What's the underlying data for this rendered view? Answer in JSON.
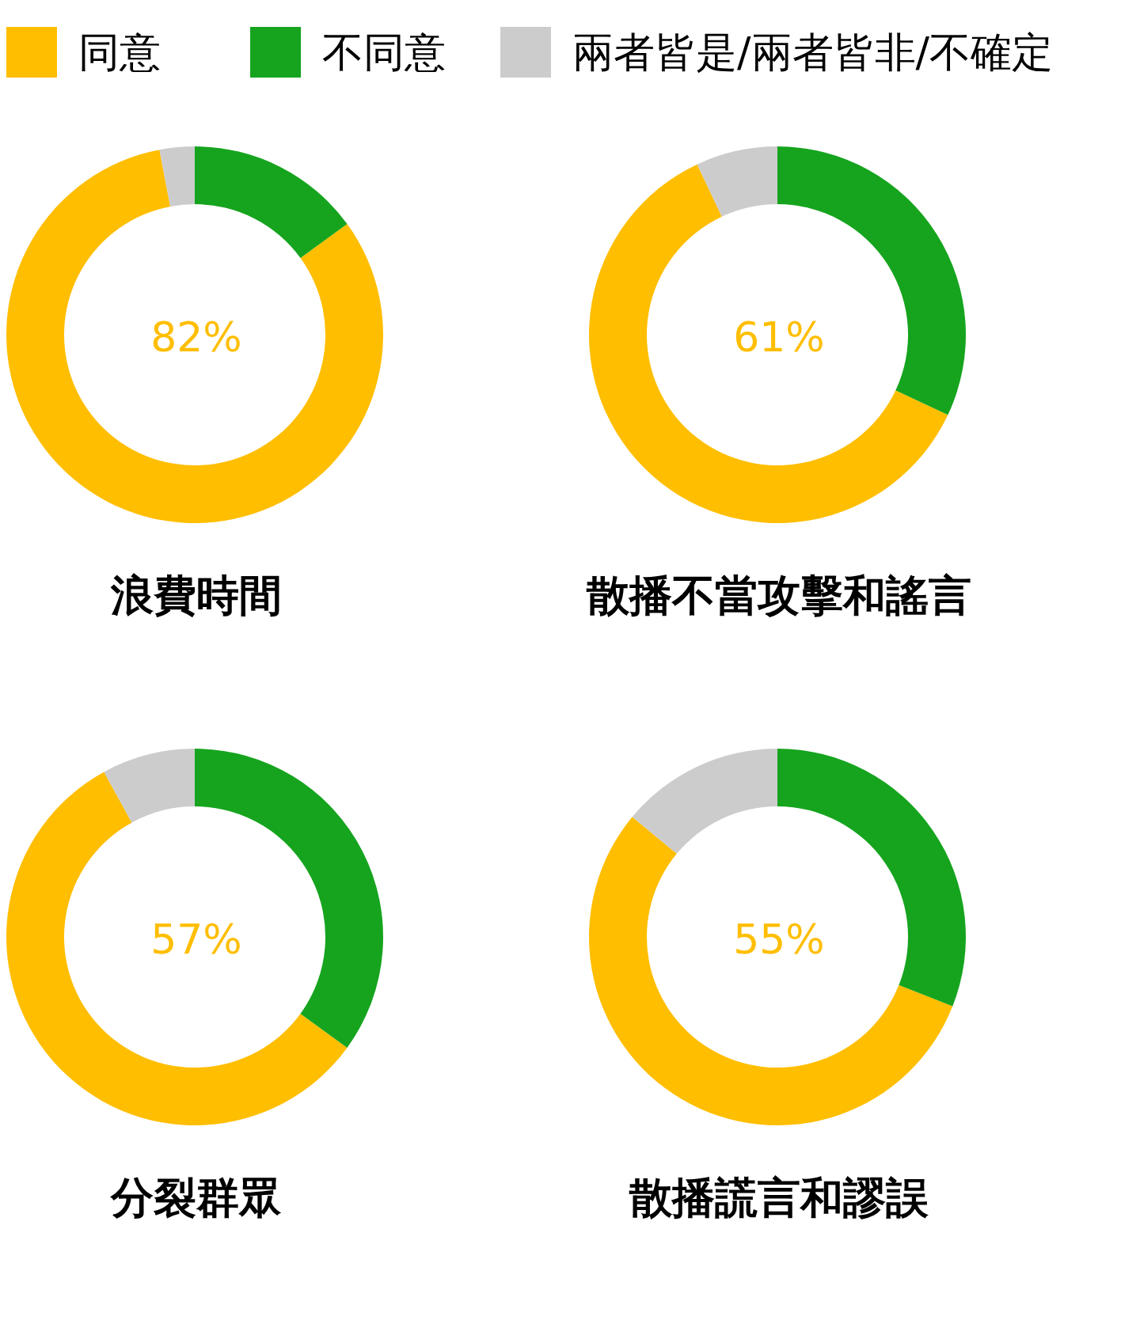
{
  "chart_data": [
    {
      "type": "donut",
      "title": "浪費時間",
      "categories": [
        "同意",
        "不同意",
        "兩者皆是/兩者皆非/不確定"
      ],
      "values": [
        82,
        15,
        3
      ],
      "colors": [
        "#ffbe00",
        "#16a41e",
        "#cccccc"
      ],
      "value_labels": [
        "82%",
        null,
        null
      ],
      "legend": "top"
    },
    {
      "type": "donut",
      "title": "散播不當攻擊和謠言",
      "categories": [
        null,
        null,
        null
      ],
      "values": [
        61,
        32,
        7
      ],
      "colors": [
        "#ffbe00",
        "#16a41e",
        "#cccccc"
      ],
      "value_labels": [
        "61%",
        null,
        null
      ]
    },
    {
      "type": "donut",
      "title": "分裂群眾",
      "categories": [
        null,
        null,
        null
      ],
      "values": [
        57,
        35,
        8
      ],
      "colors": [
        "#ffbe00",
        "#16a41e",
        "#cccccc"
      ],
      "value_labels": [
        "57%",
        null,
        null
      ]
    },
    {
      "type": "donut",
      "title": "散播謊言和謬誤",
      "categories": [
        null,
        null,
        null
      ],
      "values": [
        55,
        31,
        14
      ],
      "colors": [
        "#ffbe00",
        "#16a41e",
        "#cccccc"
      ],
      "value_labels": [
        "55%",
        null,
        null
      ]
    }
  ]
}
